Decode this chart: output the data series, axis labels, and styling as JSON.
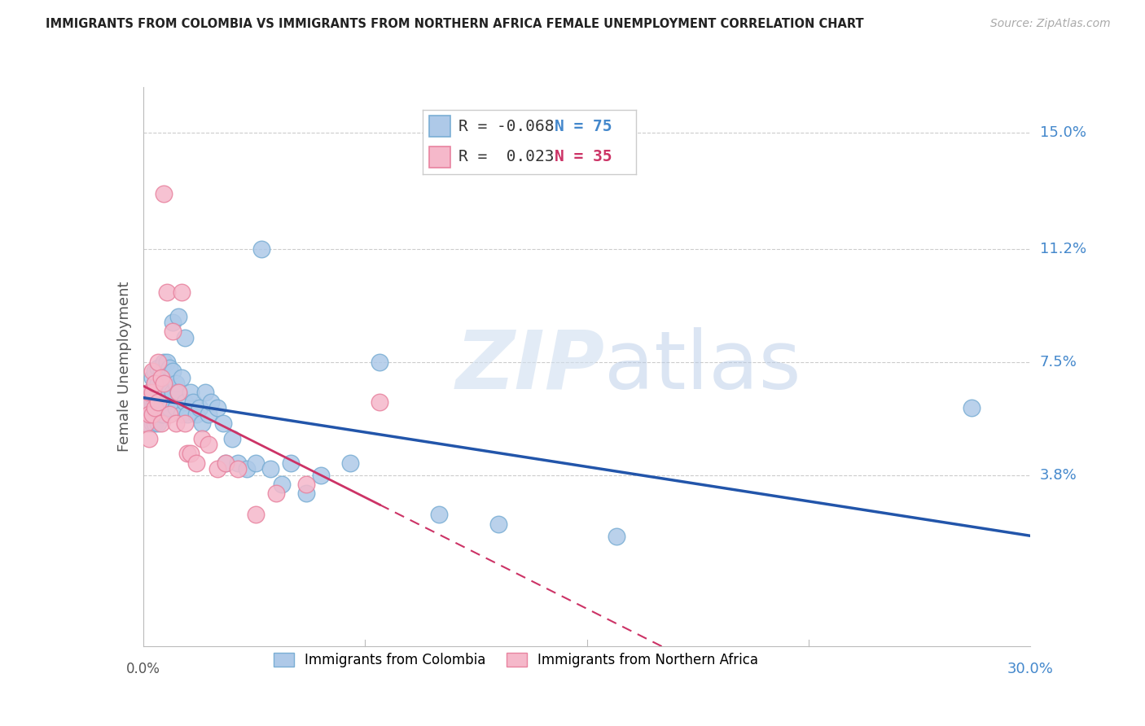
{
  "title": "IMMIGRANTS FROM COLOMBIA VS IMMIGRANTS FROM NORTHERN AFRICA FEMALE UNEMPLOYMENT CORRELATION CHART",
  "source": "Source: ZipAtlas.com",
  "ylabel": "Female Unemployment",
  "ytick_labels": [
    "15.0%",
    "11.2%",
    "7.5%",
    "3.8%"
  ],
  "ytick_vals": [
    0.15,
    0.112,
    0.075,
    0.038
  ],
  "xlim": [
    0.0,
    0.3
  ],
  "ylim": [
    -0.018,
    0.165
  ],
  "legend1_r": "-0.068",
  "legend1_n": "75",
  "legend2_r": "0.023",
  "legend2_n": "35",
  "legend1_label": "Immigrants from Colombia",
  "legend2_label": "Immigrants from Northern Africa",
  "watermark_zip": "ZIP",
  "watermark_atlas": "atlas",
  "colombia_color": "#aec9e8",
  "colombia_edge": "#7aaed4",
  "n_africa_color": "#f5b8ca",
  "n_africa_edge": "#e8839f",
  "trend1_color": "#2255aa",
  "trend2_color": "#cc3366",
  "colombia_x": [
    0.001,
    0.001,
    0.002,
    0.002,
    0.002,
    0.002,
    0.003,
    0.003,
    0.003,
    0.003,
    0.003,
    0.003,
    0.004,
    0.004,
    0.004,
    0.004,
    0.004,
    0.005,
    0.005,
    0.005,
    0.005,
    0.005,
    0.006,
    0.006,
    0.006,
    0.006,
    0.007,
    0.007,
    0.007,
    0.007,
    0.008,
    0.008,
    0.008,
    0.009,
    0.009,
    0.009,
    0.01,
    0.01,
    0.01,
    0.011,
    0.011,
    0.012,
    0.012,
    0.013,
    0.013,
    0.014,
    0.014,
    0.015,
    0.016,
    0.017,
    0.018,
    0.019,
    0.02,
    0.021,
    0.022,
    0.023,
    0.025,
    0.027,
    0.028,
    0.03,
    0.032,
    0.035,
    0.038,
    0.04,
    0.043,
    0.047,
    0.05,
    0.055,
    0.06,
    0.07,
    0.08,
    0.1,
    0.12,
    0.16,
    0.28
  ],
  "colombia_y": [
    0.062,
    0.058,
    0.065,
    0.06,
    0.058,
    0.055,
    0.07,
    0.065,
    0.062,
    0.06,
    0.058,
    0.055,
    0.072,
    0.068,
    0.062,
    0.058,
    0.055,
    0.073,
    0.068,
    0.063,
    0.06,
    0.055,
    0.072,
    0.065,
    0.06,
    0.058,
    0.075,
    0.068,
    0.063,
    0.058,
    0.075,
    0.068,
    0.062,
    0.073,
    0.065,
    0.06,
    0.088,
    0.072,
    0.065,
    0.068,
    0.06,
    0.09,
    0.065,
    0.07,
    0.058,
    0.083,
    0.062,
    0.058,
    0.065,
    0.062,
    0.058,
    0.06,
    0.055,
    0.065,
    0.058,
    0.062,
    0.06,
    0.055,
    0.042,
    0.05,
    0.042,
    0.04,
    0.042,
    0.112,
    0.04,
    0.035,
    0.042,
    0.032,
    0.038,
    0.042,
    0.075,
    0.025,
    0.022,
    0.018,
    0.06
  ],
  "n_africa_x": [
    0.001,
    0.001,
    0.002,
    0.002,
    0.002,
    0.003,
    0.003,
    0.003,
    0.004,
    0.004,
    0.005,
    0.005,
    0.006,
    0.006,
    0.007,
    0.007,
    0.008,
    0.009,
    0.01,
    0.011,
    0.012,
    0.013,
    0.014,
    0.015,
    0.016,
    0.018,
    0.02,
    0.022,
    0.025,
    0.028,
    0.032,
    0.038,
    0.045,
    0.055,
    0.08
  ],
  "n_africa_y": [
    0.062,
    0.055,
    0.065,
    0.058,
    0.05,
    0.072,
    0.065,
    0.058,
    0.068,
    0.06,
    0.075,
    0.062,
    0.07,
    0.055,
    0.13,
    0.068,
    0.098,
    0.058,
    0.085,
    0.055,
    0.065,
    0.098,
    0.055,
    0.045,
    0.045,
    0.042,
    0.05,
    0.048,
    0.04,
    0.042,
    0.04,
    0.025,
    0.032,
    0.035,
    0.062
  ]
}
